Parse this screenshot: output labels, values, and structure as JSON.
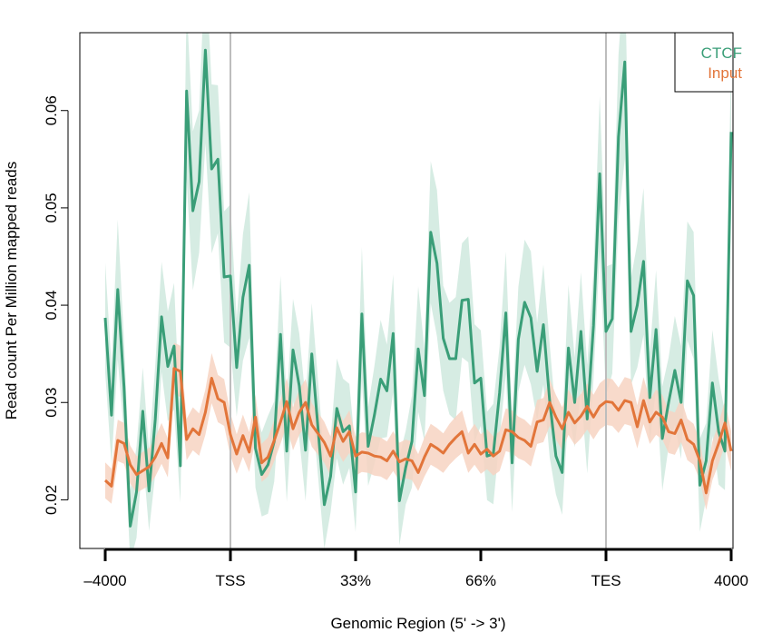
{
  "chart_data": {
    "type": "line",
    "xlabel": "Genomic Region (5' -> 3')",
    "ylabel": "Read count Per Million mapped reads",
    "xticks": [
      "-4000",
      "TSS",
      "33%",
      "66%",
      "TES",
      "4000"
    ],
    "yticks": [
      "0.02",
      "0.03",
      "0.04",
      "0.05",
      "0.06"
    ],
    "xlim": [
      0,
      100
    ],
    "ylim": [
      0.015,
      0.068
    ],
    "vlines_at": [
      20,
      80
    ],
    "legend_position": "top-right",
    "series": [
      {
        "name": "CTCF",
        "color": "#3a9e78",
        "band_color": "#cfe9de",
        "values": [
          0.0387,
          0.0287,
          0.0416,
          0.0316,
          0.0173,
          0.0208,
          0.0291,
          0.0209,
          0.0283,
          0.0388,
          0.0337,
          0.0358,
          0.0235,
          0.062,
          0.0497,
          0.0527,
          0.0662,
          0.054,
          0.055,
          0.0429,
          0.043,
          0.0336,
          0.0408,
          0.0441,
          0.0253,
          0.0226,
          0.0236,
          0.026,
          0.037,
          0.025,
          0.0354,
          0.0317,
          0.0251,
          0.035,
          0.0273,
          0.0195,
          0.0224,
          0.0294,
          0.027,
          0.0276,
          0.0208,
          0.0391,
          0.0255,
          0.0287,
          0.0324,
          0.0312,
          0.0371,
          0.0199,
          0.0233,
          0.026,
          0.0355,
          0.0307,
          0.0475,
          0.0443,
          0.0366,
          0.0345,
          0.0345,
          0.0405,
          0.0406,
          0.032,
          0.0325,
          0.0245,
          0.0247,
          0.031,
          0.0392,
          0.0238,
          0.0365,
          0.0403,
          0.0387,
          0.0332,
          0.038,
          0.0302,
          0.0245,
          0.0228,
          0.0356,
          0.03,
          0.0373,
          0.0283,
          0.0379,
          0.0535,
          0.0373,
          0.0386,
          0.0573,
          0.065,
          0.0373,
          0.04,
          0.0445,
          0.0305,
          0.0375,
          0.0263,
          0.03,
          0.0333,
          0.03,
          0.0425,
          0.041,
          0.0215,
          0.024,
          0.032,
          0.027,
          0.025,
          0.0578
        ]
      },
      {
        "name": "Input",
        "color": "#e2753a",
        "band_color": "#f7d4c2",
        "values": [
          0.022,
          0.0214,
          0.0261,
          0.0258,
          0.0236,
          0.0226,
          0.023,
          0.0234,
          0.0244,
          0.0258,
          0.0243,
          0.0335,
          0.0332,
          0.0262,
          0.0273,
          0.0267,
          0.029,
          0.0325,
          0.0304,
          0.03,
          0.0267,
          0.0247,
          0.0266,
          0.0249,
          0.0285,
          0.0238,
          0.0244,
          0.0261,
          0.028,
          0.0301,
          0.0273,
          0.029,
          0.03,
          0.0277,
          0.0268,
          0.0259,
          0.0245,
          0.0274,
          0.026,
          0.027,
          0.0245,
          0.0249,
          0.0248,
          0.0245,
          0.0244,
          0.024,
          0.025,
          0.0239,
          0.0242,
          0.024,
          0.0228,
          0.0244,
          0.0257,
          0.0253,
          0.0248,
          0.0257,
          0.0264,
          0.027,
          0.0248,
          0.0257,
          0.0247,
          0.0252,
          0.0245,
          0.025,
          0.0272,
          0.027,
          0.0264,
          0.0261,
          0.0255,
          0.028,
          0.0282,
          0.03,
          0.0285,
          0.0273,
          0.029,
          0.0279,
          0.0286,
          0.0296,
          0.0285,
          0.0296,
          0.0301,
          0.03,
          0.0292,
          0.0302,
          0.03,
          0.0275,
          0.0302,
          0.028,
          0.029,
          0.0285,
          0.027,
          0.0268,
          0.0282,
          0.0262,
          0.0257,
          0.024,
          0.0207,
          0.024,
          0.0258,
          0.0279,
          0.025
        ]
      }
    ]
  }
}
